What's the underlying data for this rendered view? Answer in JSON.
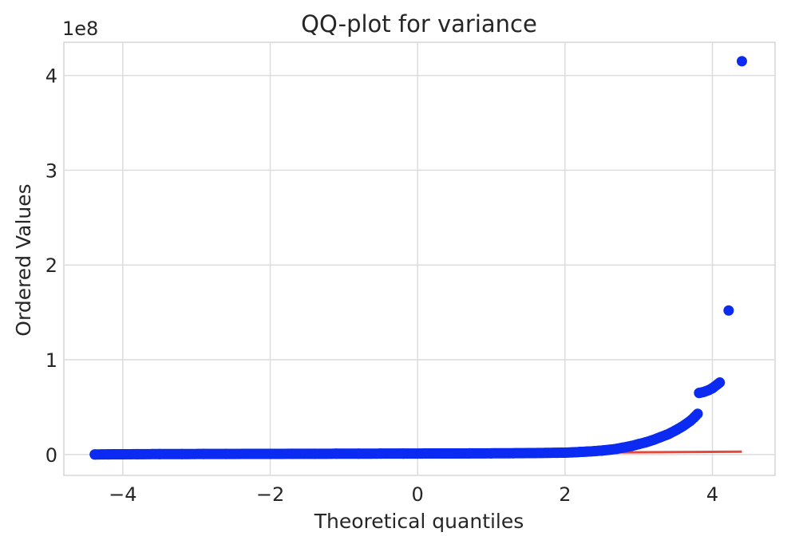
{
  "chart_data": {
    "type": "scatter",
    "title": "QQ-plot for variance",
    "xlabel": "Theoretical quantiles",
    "ylabel": "Ordered Values",
    "y_offset_label": "1e8",
    "xlim": [
      -4.8,
      4.85
    ],
    "ylim": [
      -0.22,
      4.35
    ],
    "x_ticks": [
      -4,
      -2,
      0,
      2,
      4
    ],
    "x_tick_labels": [
      "−4",
      "−2",
      "0",
      "2",
      "4"
    ],
    "y_ticks": [
      0,
      1,
      2,
      3,
      4
    ],
    "y_tick_labels": [
      "0",
      "1",
      "2",
      "3",
      "4"
    ],
    "grid": true,
    "marker_color": "#0b2bf2",
    "line_color": "#e8483a",
    "series": [
      {
        "kind": "points",
        "points": [
          [
            -4.38,
            0.001
          ],
          [
            -4.2,
            0.002
          ],
          [
            -4.1,
            0.003
          ],
          [
            -4.0,
            0.003
          ],
          [
            -3.8,
            0.004
          ],
          [
            -3.5,
            0.005
          ],
          [
            -3.2,
            0.005
          ],
          [
            -2.9,
            0.006
          ],
          [
            -2.6,
            0.006
          ],
          [
            -2.3,
            0.007
          ],
          [
            -2.0,
            0.007
          ],
          [
            -1.7,
            0.008
          ],
          [
            -1.4,
            0.008
          ],
          [
            -1.1,
            0.009
          ],
          [
            -0.8,
            0.009
          ],
          [
            -0.5,
            0.01
          ],
          [
            -0.2,
            0.01
          ],
          [
            0.1,
            0.011
          ],
          [
            0.4,
            0.011
          ],
          [
            0.7,
            0.012
          ],
          [
            1.0,
            0.013
          ],
          [
            1.3,
            0.014
          ],
          [
            1.6,
            0.016
          ],
          [
            1.9,
            0.019
          ],
          [
            2.0,
            0.02
          ],
          [
            2.1,
            0.023
          ],
          [
            2.2,
            0.027
          ],
          [
            2.3,
            0.031
          ],
          [
            2.4,
            0.036
          ],
          [
            2.5,
            0.042
          ],
          [
            2.6,
            0.05
          ],
          [
            2.7,
            0.06
          ],
          [
            2.8,
            0.075
          ],
          [
            2.9,
            0.09
          ],
          [
            3.0,
            0.11
          ],
          [
            3.1,
            0.13
          ],
          [
            3.2,
            0.155
          ],
          [
            3.3,
            0.185
          ],
          [
            3.4,
            0.215
          ],
          [
            3.5,
            0.255
          ],
          [
            3.6,
            0.3
          ],
          [
            3.7,
            0.355
          ],
          [
            3.75,
            0.39
          ],
          [
            3.8,
            0.43
          ],
          [
            3.82,
            0.65
          ],
          [
            3.88,
            0.66
          ],
          [
            3.95,
            0.68
          ],
          [
            4.0,
            0.7
          ],
          [
            4.1,
            0.76
          ],
          [
            4.22,
            1.52
          ],
          [
            4.4,
            4.15
          ]
        ]
      },
      {
        "kind": "fit-line",
        "points": [
          [
            -4.38,
            -0.01
          ],
          [
            4.4,
            0.03
          ]
        ]
      }
    ]
  }
}
